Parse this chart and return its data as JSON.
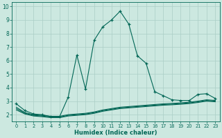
{
  "xlabel": "Humidex (Indice chaleur)",
  "ylabel": "",
  "bg_color": "#cce8e0",
  "grid_color": "#aacec6",
  "line_color": "#006655",
  "xlim": [
    -0.5,
    23.5
  ],
  "ylim": [
    1.5,
    10.3
  ],
  "xticks": [
    0,
    1,
    2,
    3,
    4,
    5,
    6,
    7,
    8,
    9,
    10,
    11,
    12,
    13,
    14,
    15,
    16,
    17,
    18,
    19,
    20,
    21,
    22,
    23
  ],
  "yticks": [
    2,
    3,
    4,
    5,
    6,
    7,
    8,
    9,
    10
  ],
  "main_x": [
    0,
    1,
    2,
    3,
    4,
    5,
    6,
    7,
    8,
    9,
    10,
    11,
    12,
    13,
    14,
    15,
    16,
    17,
    18,
    19,
    20,
    21,
    22,
    23
  ],
  "main_y": [
    2.8,
    2.3,
    2.05,
    2.0,
    1.85,
    1.85,
    3.3,
    6.4,
    3.9,
    7.5,
    8.5,
    9.0,
    9.65,
    8.7,
    6.35,
    5.8,
    3.7,
    3.4,
    3.1,
    3.05,
    3.05,
    3.5,
    3.55,
    3.2
  ],
  "line2_x": [
    0,
    1,
    2,
    3,
    4,
    5,
    6,
    7,
    8,
    9,
    10,
    11,
    12,
    13,
    14,
    15,
    16,
    17,
    18,
    19,
    20,
    21,
    22,
    23
  ],
  "line2_y": [
    2.55,
    2.15,
    2.0,
    1.95,
    1.88,
    1.88,
    2.0,
    2.05,
    2.1,
    2.2,
    2.35,
    2.45,
    2.55,
    2.6,
    2.65,
    2.7,
    2.75,
    2.8,
    2.83,
    2.87,
    2.92,
    3.0,
    3.1,
    3.05
  ],
  "line3_x": [
    0,
    1,
    2,
    3,
    4,
    5,
    6,
    7,
    8,
    9,
    10,
    11,
    12,
    13,
    14,
    15,
    16,
    17,
    18,
    19,
    20,
    21,
    22,
    23
  ],
  "line3_y": [
    2.45,
    2.1,
    1.95,
    1.9,
    1.82,
    1.82,
    1.95,
    2.0,
    2.05,
    2.15,
    2.3,
    2.4,
    2.5,
    2.55,
    2.6,
    2.65,
    2.7,
    2.75,
    2.78,
    2.82,
    2.87,
    2.95,
    3.05,
    3.0
  ],
  "line4_x": [
    0,
    1,
    2,
    3,
    4,
    5,
    6,
    7,
    8,
    9,
    10,
    11,
    12,
    13,
    14,
    15,
    16,
    17,
    18,
    19,
    20,
    21,
    22,
    23
  ],
  "line4_y": [
    2.35,
    2.05,
    1.9,
    1.85,
    1.78,
    1.78,
    1.9,
    1.95,
    2.0,
    2.1,
    2.25,
    2.35,
    2.45,
    2.5,
    2.55,
    2.6,
    2.65,
    2.7,
    2.73,
    2.77,
    2.82,
    2.9,
    3.0,
    2.95
  ]
}
